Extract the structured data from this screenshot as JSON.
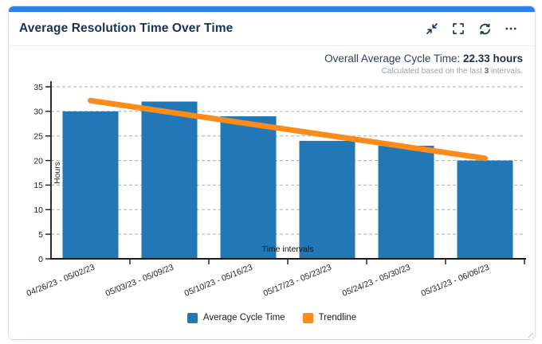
{
  "card": {
    "title": "Average Resolution Time Over Time",
    "accent_color": "#2e7ff2",
    "toolbar_icons": [
      "collapse-icon",
      "fullscreen-icon",
      "refresh-icon",
      "more-options-icon"
    ]
  },
  "summary": {
    "label": "Overall Average Cycle Time: ",
    "value": "22.33 hours",
    "note_prefix": "Calculated based on the last ",
    "note_count": "3",
    "note_suffix": " intervals."
  },
  "chart_data": {
    "type": "bar",
    "title": "Average Resolution Time Over Time",
    "categories": [
      "04/26/23 - 05/02/23",
      "05/03/23 - 05/09/23",
      "05/10/23 - 05/16/23",
      "05/17/23 - 05/23/23",
      "05/24/23 - 05/30/23",
      "05/31/23 - 06/06/23"
    ],
    "series": [
      {
        "name": "Average Cycle Time",
        "type": "bar",
        "color": "#2278b5",
        "values": [
          30,
          32,
          29,
          24,
          23,
          20
        ]
      },
      {
        "name": "Trendline",
        "type": "line",
        "color": "#fb8b1b",
        "values": [
          32.2,
          29.85,
          27.5,
          25.15,
          22.8,
          20.45
        ]
      }
    ],
    "xlabel": "Time intervals",
    "ylabel": "Hours",
    "ylim": [
      0,
      35
    ],
    "yticks": [
      0,
      5,
      10,
      15,
      20,
      25,
      30,
      35
    ],
    "grid": "horizontal-dashed",
    "legend_position": "bottom-center"
  }
}
